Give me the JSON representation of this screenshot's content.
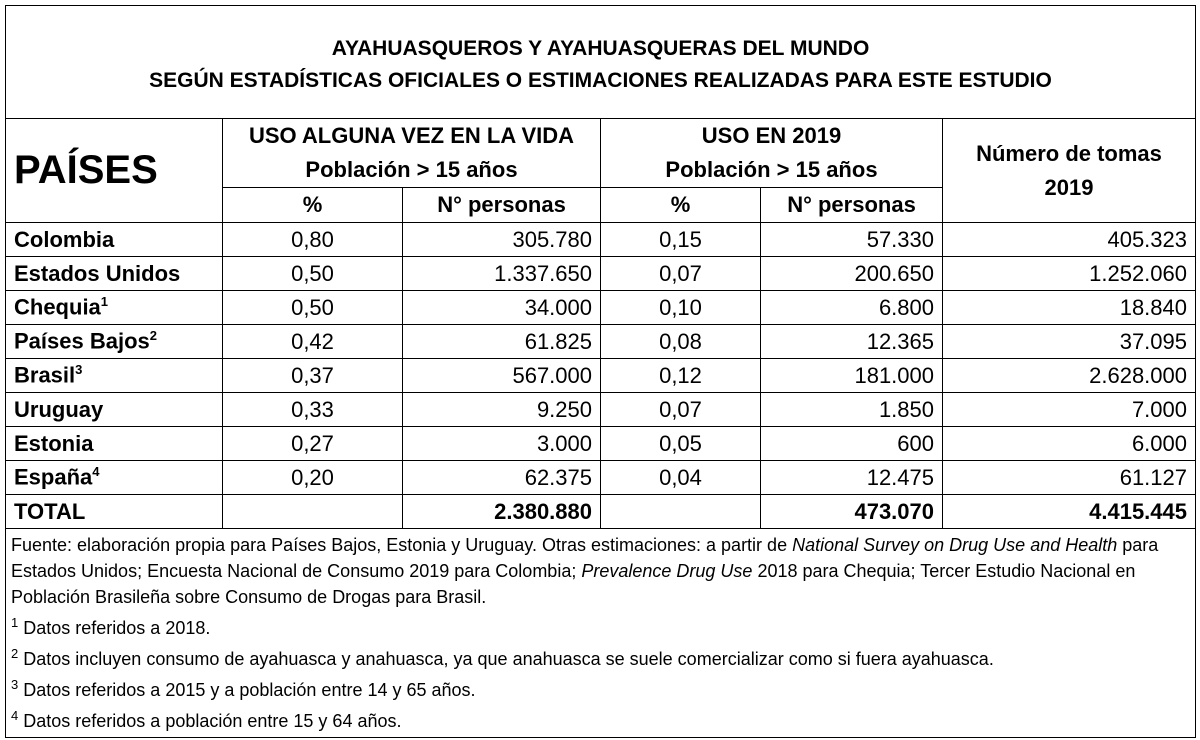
{
  "title": [
    "AYAHUASQUEROS Y AYAHUASQUERAS DEL MUNDO",
    "SEGÚN ESTADÍSTICAS OFICIALES O ESTIMACIONES REALIZADAS PARA ESTE ESTUDIO"
  ],
  "table": {
    "header": {
      "countries": "PAÍSES",
      "groups": [
        {
          "label": [
            "USO ALGUNA VEZ EN LA VIDA",
            "Población > 15 años"
          ],
          "columns": [
            "%",
            "N° personas"
          ]
        },
        {
          "label": [
            "USO EN 2019",
            "Población > 15 años"
          ],
          "columns": [
            "%",
            "N° personas"
          ]
        }
      ],
      "doses": [
        "Número de tomas",
        "2019"
      ]
    },
    "rows": [
      {
        "country": "Colombia",
        "cells": [
          "0,80",
          "305.780",
          "0,15",
          "57.330",
          "405.323"
        ]
      },
      {
        "country": "Estados Unidos",
        "cells": [
          "0,50",
          "1.337.650",
          "0,07",
          "200.650",
          "1.252.060"
        ]
      },
      {
        "country": "Chequia",
        "note": "1",
        "cells": [
          "0,50",
          "34.000",
          "0,10",
          "6.800",
          "18.840"
        ]
      },
      {
        "country": "Países Bajos",
        "note": "2",
        "cells": [
          "0,42",
          "61.825",
          "0,08",
          "12.365",
          "37.095"
        ]
      },
      {
        "country": "Brasil",
        "note": "3",
        "cells": [
          "0,37",
          "567.000",
          "0,12",
          "181.000",
          "2.628.000"
        ]
      },
      {
        "country": "Uruguay",
        "cells": [
          "0,33",
          "9.250",
          "0,07",
          "1.850",
          "7.000"
        ]
      },
      {
        "country": "Estonia",
        "cells": [
          "0,27",
          "3.000",
          "0,05",
          "600",
          "6.000"
        ]
      },
      {
        "country": "España",
        "note": "4",
        "cells": [
          "0,20",
          "62.375",
          "0,04",
          "12.475",
          "61.127"
        ]
      }
    ],
    "total": {
      "label": "TOTAL",
      "cells": [
        "2.380.880",
        "473.070",
        "4.415.445"
      ]
    }
  },
  "footer": {
    "source": [
      {
        "text": "Fuente: elaboración propia para Países Bajos, Estonia y Uruguay. Otras estimaciones: a partir de "
      },
      {
        "text": "National Survey on Drug Use and Health",
        "italic": true
      },
      {
        "text": " para Estados Unidos; Encuesta Nacional de Consumo 2019 para Colombia; "
      },
      {
        "text": "Prevalence Drug Use",
        "italic": true
      },
      {
        "text": " 2018 para Chequia; Tercer Estudio Nacional en Población Brasileña sobre Consumo de Drogas para Brasil."
      }
    ],
    "notes": [
      {
        "mark": "1",
        "text": "Datos referidos a 2018."
      },
      {
        "mark": "2",
        "text": "Datos incluyen consumo de ayahuasca y anahuasca, ya que anahuasca se suele comercializar como si fuera ayahuasca."
      },
      {
        "mark": "3",
        "text": "Datos referidos a 2015 y a población entre 14 y 65 años."
      },
      {
        "mark": "4",
        "text": "Datos referidos a población entre 15 y 64 años."
      }
    ]
  }
}
